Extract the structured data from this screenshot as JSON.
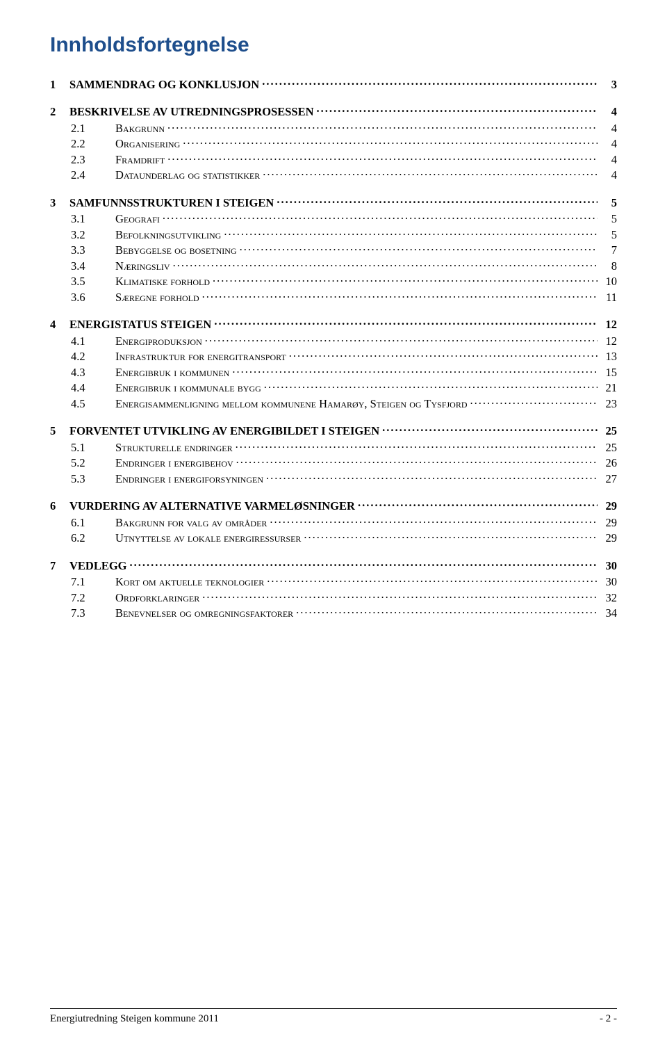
{
  "title": "Innholdsfortegnelse",
  "title_color": "#1e4e8c",
  "title_fontsize_pt": 22,
  "body_font": "Times New Roman",
  "body_fontsize_pt": 12,
  "page_bg": "#ffffff",
  "text_color": "#000000",
  "toc": [
    {
      "level": 1,
      "num": "1",
      "label": "SAMMENDRAG OG KONKLUSJON",
      "page": "3"
    },
    {
      "level": 1,
      "num": "2",
      "label": "BESKRIVELSE AV UTREDNINGSPROSESSEN",
      "page": "4"
    },
    {
      "level": 2,
      "num": "2.1",
      "label": "Bakgrunn",
      "page": "4"
    },
    {
      "level": 2,
      "num": "2.2",
      "label": "Organisering",
      "page": "4"
    },
    {
      "level": 2,
      "num": "2.3",
      "label": "Framdrift",
      "page": "4"
    },
    {
      "level": 2,
      "num": "2.4",
      "label": "Dataunderlag og statistikker",
      "page": "4"
    },
    {
      "level": 1,
      "num": "3",
      "label": "SAMFUNNSSTRUKTUREN I STEIGEN",
      "page": "5"
    },
    {
      "level": 2,
      "num": "3.1",
      "label": "Geografi",
      "page": "5"
    },
    {
      "level": 2,
      "num": "3.2",
      "label": "Befolkningsutvikling",
      "page": "5"
    },
    {
      "level": 2,
      "num": "3.3",
      "label": "Bebyggelse og bosetning",
      "page": "7"
    },
    {
      "level": 2,
      "num": "3.4",
      "label": "Næringsliv",
      "page": "8"
    },
    {
      "level": 2,
      "num": "3.5",
      "label": "Klimatiske forhold",
      "page": "10"
    },
    {
      "level": 2,
      "num": "3.6",
      "label": "Særegne forhold",
      "page": "11"
    },
    {
      "level": 1,
      "num": "4",
      "label": "ENERGISTATUS STEIGEN",
      "page": "12"
    },
    {
      "level": 2,
      "num": "4.1",
      "label": "Energiproduksjon",
      "page": "12"
    },
    {
      "level": 2,
      "num": "4.2",
      "label": "Infrastruktur for energitransport",
      "page": "13"
    },
    {
      "level": 2,
      "num": "4.3",
      "label": "Energibruk i kommunen",
      "page": "15"
    },
    {
      "level": 2,
      "num": "4.4",
      "label": "Energibruk i kommunale bygg",
      "page": "21"
    },
    {
      "level": 2,
      "num": "4.5",
      "label": "Energisammenligning mellom kommunene Hamarøy, Steigen og Tysfjord",
      "page": "23"
    },
    {
      "level": 1,
      "num": "5",
      "label": "FORVENTET UTVIKLING AV ENERGIBILDET I STEIGEN",
      "page": "25"
    },
    {
      "level": 2,
      "num": "5.1",
      "label": "Strukturelle endringer",
      "page": "25"
    },
    {
      "level": 2,
      "num": "5.2",
      "label": "Endringer i energibehov",
      "page": "26"
    },
    {
      "level": 2,
      "num": "5.3",
      "label": "Endringer i energiforsyningen",
      "page": "27"
    },
    {
      "level": 1,
      "num": "6",
      "label": "VURDERING AV ALTERNATIVE VARMELØSNINGER",
      "page": "29"
    },
    {
      "level": 2,
      "num": "6.1",
      "label": "Bakgrunn for valg av områder",
      "page": "29"
    },
    {
      "level": 2,
      "num": "6.2",
      "label": "Utnyttelse av lokale energiressurser",
      "page": "29"
    },
    {
      "level": 1,
      "num": "7",
      "label": "VEDLEGG",
      "page": "30"
    },
    {
      "level": 2,
      "num": "7.1",
      "label": "Kort om aktuelle teknologier",
      "page": "30"
    },
    {
      "level": 2,
      "num": "7.2",
      "label": "Ordforklaringer",
      "page": "32"
    },
    {
      "level": 2,
      "num": "7.3",
      "label": "Benevnelser og omregningsfaktorer",
      "page": "34"
    }
  ],
  "footer": {
    "left": "Energiutredning Steigen kommune 2011",
    "right": "-  2  -"
  }
}
